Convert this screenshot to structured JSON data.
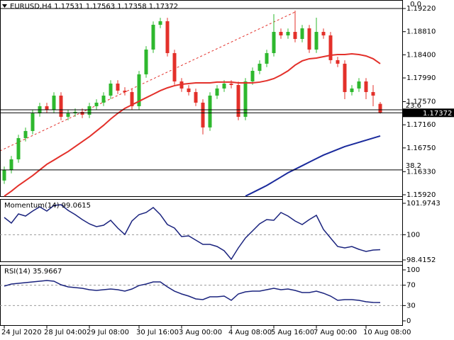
{
  "chart_data": [
    {
      "type": "candlestick",
      "title": "EURUSD,H4  1.17531 1.17563 1.17358 1.17372",
      "open": [
        1.16172,
        1.1636,
        1.16548,
        1.16924,
        1.1705,
        1.17363,
        1.17489,
        1.17426,
        1.17677,
        1.17301,
        1.17363,
        1.17389,
        1.17338,
        1.17489,
        1.17552,
        1.17677,
        1.1789,
        1.17765,
        1.1774,
        1.17489,
        1.18054,
        1.18493,
        1.18932,
        1.18995,
        1.1843,
        1.17928,
        1.17803,
        1.1774,
        1.17552,
        1.17113,
        1.17677,
        1.17803,
        1.1789,
        1.17865,
        1.17301,
        1.17928,
        1.18116,
        1.18242,
        1.1843,
        1.18806,
        1.18744,
        1.18806,
        1.18681,
        1.18869,
        1.18493,
        1.18806,
        1.18744,
        1.18305,
        1.18242,
        1.1774,
        1.17803,
        1.17928,
        1.1774,
        1.17531
      ],
      "high": [
        1.1642,
        1.16608,
        1.16984,
        1.1711,
        1.17423,
        1.17549,
        1.17549,
        1.17737,
        1.17737,
        1.17423,
        1.17449,
        1.17449,
        1.17549,
        1.17612,
        1.17737,
        1.1795,
        1.1795,
        1.17825,
        1.178,
        1.18114,
        1.18553,
        1.18992,
        1.19055,
        1.19055,
        1.1849,
        1.17988,
        1.17863,
        1.178,
        1.17612,
        1.17737,
        1.17863,
        1.1795,
        1.1795,
        1.17925,
        1.17988,
        1.18176,
        1.18302,
        1.1849,
        1.1912,
        1.18866,
        1.18866,
        1.19183,
        1.18929,
        1.18929,
        1.19058,
        1.18866,
        1.18804,
        1.18365,
        1.18302,
        1.17863,
        1.17988,
        1.17988,
        1.17863,
        1.17563
      ],
      "low": [
        1.16112,
        1.163,
        1.16488,
        1.16864,
        1.1699,
        1.17303,
        1.17366,
        1.17366,
        1.17241,
        1.17241,
        1.17303,
        1.17278,
        1.17278,
        1.17429,
        1.17492,
        1.17617,
        1.17705,
        1.1768,
        1.17429,
        1.17429,
        1.17994,
        1.18433,
        1.18872,
        1.1837,
        1.17868,
        1.17743,
        1.1768,
        1.17492,
        1.1699,
        1.17053,
        1.17617,
        1.17743,
        1.17805,
        1.17241,
        1.17241,
        1.17868,
        1.18056,
        1.18182,
        1.1837,
        1.18684,
        1.18684,
        1.18621,
        1.18621,
        1.18433,
        1.18433,
        1.18684,
        1.18245,
        1.18182,
        1.17614,
        1.1768,
        1.17743,
        1.17614,
        1.17489,
        1.17358
      ],
      "close": [
        1.1636,
        1.16548,
        1.16924,
        1.1705,
        1.17363,
        1.17489,
        1.17426,
        1.17677,
        1.17301,
        1.17363,
        1.17389,
        1.17338,
        1.17489,
        1.17552,
        1.17677,
        1.1789,
        1.17765,
        1.1774,
        1.17489,
        1.18054,
        1.18493,
        1.18932,
        1.18995,
        1.1843,
        1.17928,
        1.17803,
        1.1774,
        1.17552,
        1.17113,
        1.17677,
        1.17803,
        1.1789,
        1.17865,
        1.17301,
        1.17928,
        1.18116,
        1.18242,
        1.1843,
        1.18806,
        1.18744,
        1.18806,
        1.18681,
        1.18869,
        1.18493,
        1.18806,
        1.18744,
        1.18305,
        1.18242,
        1.1774,
        1.17803,
        1.17928,
        1.1774,
        1.17677,
        1.17372
      ],
      "up_color": "#2eb82e",
      "down_color": "#e3302a",
      "lines": [
        {
          "color": "#e3302a",
          "values": [
            1.15896,
            1.15983,
            1.16084,
            1.16172,
            1.16259,
            1.1636,
            1.1646,
            1.16535,
            1.16611,
            1.16686,
            1.16774,
            1.16862,
            1.16949,
            1.1705,
            1.1715,
            1.17263,
            1.17363,
            1.17451,
            1.17514,
            1.17577,
            1.1764,
            1.17702,
            1.17765,
            1.17815,
            1.17853,
            1.17878,
            1.1789,
            1.17903,
            1.17903,
            1.17903,
            1.17916,
            1.17916,
            1.17916,
            1.17903,
            1.17903,
            1.17903,
            1.17916,
            1.17941,
            1.17978,
            1.18041,
            1.18116,
            1.18217,
            1.18292,
            1.1833,
            1.18342,
            1.18367,
            1.18392,
            1.18405,
            1.18405,
            1.18417,
            1.18405,
            1.1838,
            1.1833,
            1.18242
          ]
        },
        {
          "color": "#1a2a9c",
          "values": [
            null,
            null,
            null,
            null,
            null,
            null,
            null,
            null,
            null,
            null,
            null,
            null,
            null,
            null,
            null,
            null,
            null,
            null,
            null,
            null,
            null,
            null,
            null,
            null,
            null,
            null,
            null,
            null,
            null,
            null,
            null,
            null,
            null,
            null,
            1.15896,
            1.15958,
            1.16021,
            1.16084,
            1.16159,
            1.16234,
            1.1631,
            1.16372,
            1.16435,
            1.16498,
            1.16561,
            1.16623,
            1.16673,
            1.16724,
            1.16774,
            1.16811,
            1.16849,
            1.16887,
            1.16924,
            1.16962
          ]
        }
      ],
      "levels": [
        {
          "label": "0.0",
          "value": 1.1922
        },
        {
          "label": "23.6",
          "value": 1.17426
        },
        {
          "label": "38.2",
          "value": 1.1636
        }
      ],
      "last_price": 1.17372,
      "ylim": [
        1.15882,
        1.19371
      ],
      "yticks": [
        {
          "value": 1.1922,
          "label": "1.19220"
        },
        {
          "value": 1.1881,
          "label": "1.18810"
        },
        {
          "value": 1.184,
          "label": "1.18400"
        },
        {
          "value": 1.1799,
          "label": "1.17990"
        },
        {
          "value": 1.1757,
          "label": "1.17570"
        },
        {
          "value": 1.1716,
          "label": "1.17160"
        },
        {
          "value": 1.1675,
          "label": "1.16750"
        },
        {
          "value": 1.1633,
          "label": "1.16330"
        },
        {
          "value": 1.1592,
          "label": "1.15920"
        }
      ]
    },
    {
      "type": "line",
      "title": "Momentum(14) 99.0615",
      "color": "#1a237e",
      "values": [
        101.0846,
        100.7287,
        101.307,
        101.1736,
        101.485,
        101.7519,
        101.485,
        101.8408,
        101.8853,
        101.5295,
        101.2626,
        100.9512,
        100.6843,
        100.5063,
        100.5953,
        100.9067,
        100.4174,
        100.017,
        100.8622,
        101.2626,
        101.396,
        101.7074,
        101.2626,
        100.6398,
        100.4174,
        99.8836,
        99.928,
        99.6611,
        99.3942,
        99.3942,
        99.2608,
        98.9939,
        98.4601,
        99.1718,
        99.7946,
        100.2394,
        100.6843,
        100.9512,
        100.9067,
        101.396,
        101.1736,
        100.8622,
        100.6398,
        100.9512,
        101.2181,
        100.3284,
        99.7946,
        99.2608,
        99.1718,
        99.2608,
        99.0828,
        98.9494,
        99.0384,
        99.0615
      ],
      "levels": [
        100
      ],
      "ylim": [
        98.282,
        102.241
      ],
      "yticks": [
        101.9743,
        100,
        98.4152
      ]
    },
    {
      "type": "line",
      "title": "RSI(14) 35.9667",
      "color": "#1a237e",
      "values": [
        68.1,
        72.2,
        73.6,
        75.0,
        76.4,
        77.8,
        79.2,
        77.8,
        70.8,
        66.7,
        65.3,
        63.9,
        61.1,
        59.7,
        61.1,
        62.5,
        61.1,
        58.3,
        62.5,
        69.4,
        72.2,
        76.4,
        76.4,
        66.7,
        58.3,
        52.8,
        48.6,
        43.1,
        41.7,
        47.2,
        47.2,
        48.6,
        40.3,
        52.8,
        56.9,
        58.3,
        58.3,
        61.1,
        63.9,
        61.1,
        62.5,
        59.7,
        55.6,
        55.6,
        58.3,
        54.2,
        48.6,
        40.3,
        41.7,
        41.7,
        40.3,
        37.5,
        36.1,
        35.9667
      ],
      "levels": [
        70,
        30
      ],
      "ylim": [
        -9.72,
        109.72
      ],
      "yticks": [
        100,
        70,
        30,
        0
      ],
      "categories": [
        "24 Jul 2020",
        null,
        null,
        null,
        null,
        null,
        "28 Jul 04:00",
        null,
        null,
        null,
        null,
        null,
        "29 Jul 08:00",
        null,
        null,
        null,
        null,
        null,
        null,
        "30 Jul 16:00",
        null,
        null,
        null,
        null,
        null,
        "3 Aug 00:00",
        null,
        null,
        null,
        null,
        null,
        null,
        "4 Aug 08:00",
        null,
        null,
        null,
        null,
        null,
        "5 Aug 16:00",
        null,
        null,
        null,
        null,
        null,
        "7 Aug 00:00",
        null,
        null,
        null,
        null,
        null,
        null,
        "10 Aug 08:00",
        null,
        null
      ]
    }
  ]
}
